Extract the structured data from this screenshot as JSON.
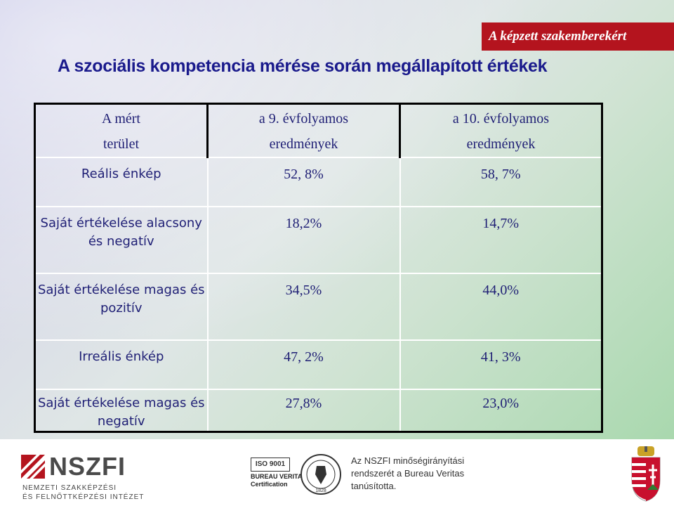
{
  "banner": "A képzett szakemberekért",
  "title": "A szociális kompetencia mérése során megállapított értékek",
  "table": {
    "headers": [
      [
        "A mért",
        "terület"
      ],
      [
        "a 9. évfolyamos",
        "eredmények"
      ],
      [
        "a 10. évfolyamos",
        "eredmények"
      ]
    ],
    "rows": [
      {
        "label": "Reális énkép",
        "g9": "52, 8%",
        "g10": "58, 7%"
      },
      {
        "label": "Saját értékelése alacsony és negatív",
        "g9": "18,2%",
        "g10": "14,7%"
      },
      {
        "label": "Saját értékelése magas és pozitív",
        "g9": "34,5%",
        "g10": "44,0%"
      },
      {
        "label": "Irreális énkép",
        "g9": "47, 2%",
        "g10": "41, 3%"
      },
      {
        "label": "Saját értékelése magas és negatív",
        "g9": "27,8%",
        "g10": "23,0%"
      }
    ]
  },
  "footer": {
    "nszfi_name": "NSZFI",
    "nszfi_sub1": "NEMZETI SZAKKÉPZÉSI",
    "nszfi_sub2": "ÉS FELNŐTTKÉPZÉSI INTÉZET",
    "iso": "ISO 9001",
    "bv_line1": "BUREAU VERITAS",
    "bv_line2": "Certification",
    "seal_year": "1828",
    "cert_text": "Az NSZFI minőségirányítási rendszerét a Bureau Veritas tanúsította."
  },
  "colors": {
    "banner": "#b4141e",
    "title": "#1a1a8c",
    "cell_text": "#1f1f75",
    "border": "#000000"
  }
}
